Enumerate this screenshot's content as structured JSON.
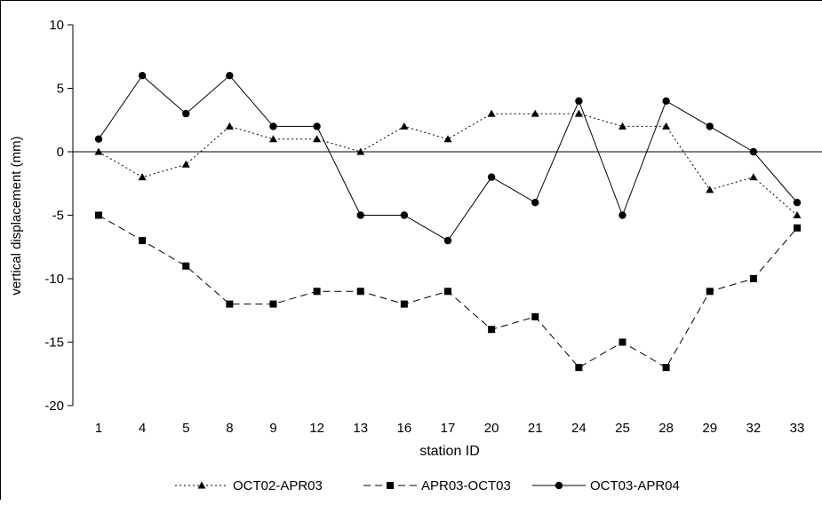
{
  "chart_data": {
    "type": "line",
    "title": "",
    "xlabel": "station ID",
    "ylabel": "vertical displacement (mm)",
    "categories": [
      "1",
      "4",
      "5",
      "8",
      "9",
      "12",
      "13",
      "16",
      "17",
      "20",
      "21",
      "24",
      "25",
      "28",
      "29",
      "32",
      "33"
    ],
    "ylim": [
      -20,
      10
    ],
    "yticks": [
      "10",
      "5",
      "0",
      "-5",
      "-10",
      "-15",
      "-20"
    ],
    "grid": false,
    "legend_position": "bottom",
    "series": [
      {
        "name": "OCT02-APR03",
        "marker": "triangle",
        "line_style": "dotted",
        "values": [
          0,
          -2,
          -1,
          2,
          1,
          1,
          0,
          2,
          1,
          3,
          3,
          3,
          2,
          2,
          -3,
          -2,
          -5
        ]
      },
      {
        "name": "APR03-OCT03",
        "marker": "square",
        "line_style": "dashed",
        "values": [
          -5,
          -7,
          -9,
          -12,
          -12,
          -11,
          -11,
          -12,
          -11,
          -14,
          -13,
          -17,
          -15,
          -17,
          -11,
          -10,
          -6
        ]
      },
      {
        "name": "OCT03-APR04",
        "marker": "circle",
        "line_style": "solid",
        "values": [
          1,
          6,
          3,
          6,
          2,
          2,
          -5,
          -5,
          -7,
          -2,
          -4,
          4,
          -5,
          4,
          2,
          0,
          -4
        ]
      }
    ]
  }
}
